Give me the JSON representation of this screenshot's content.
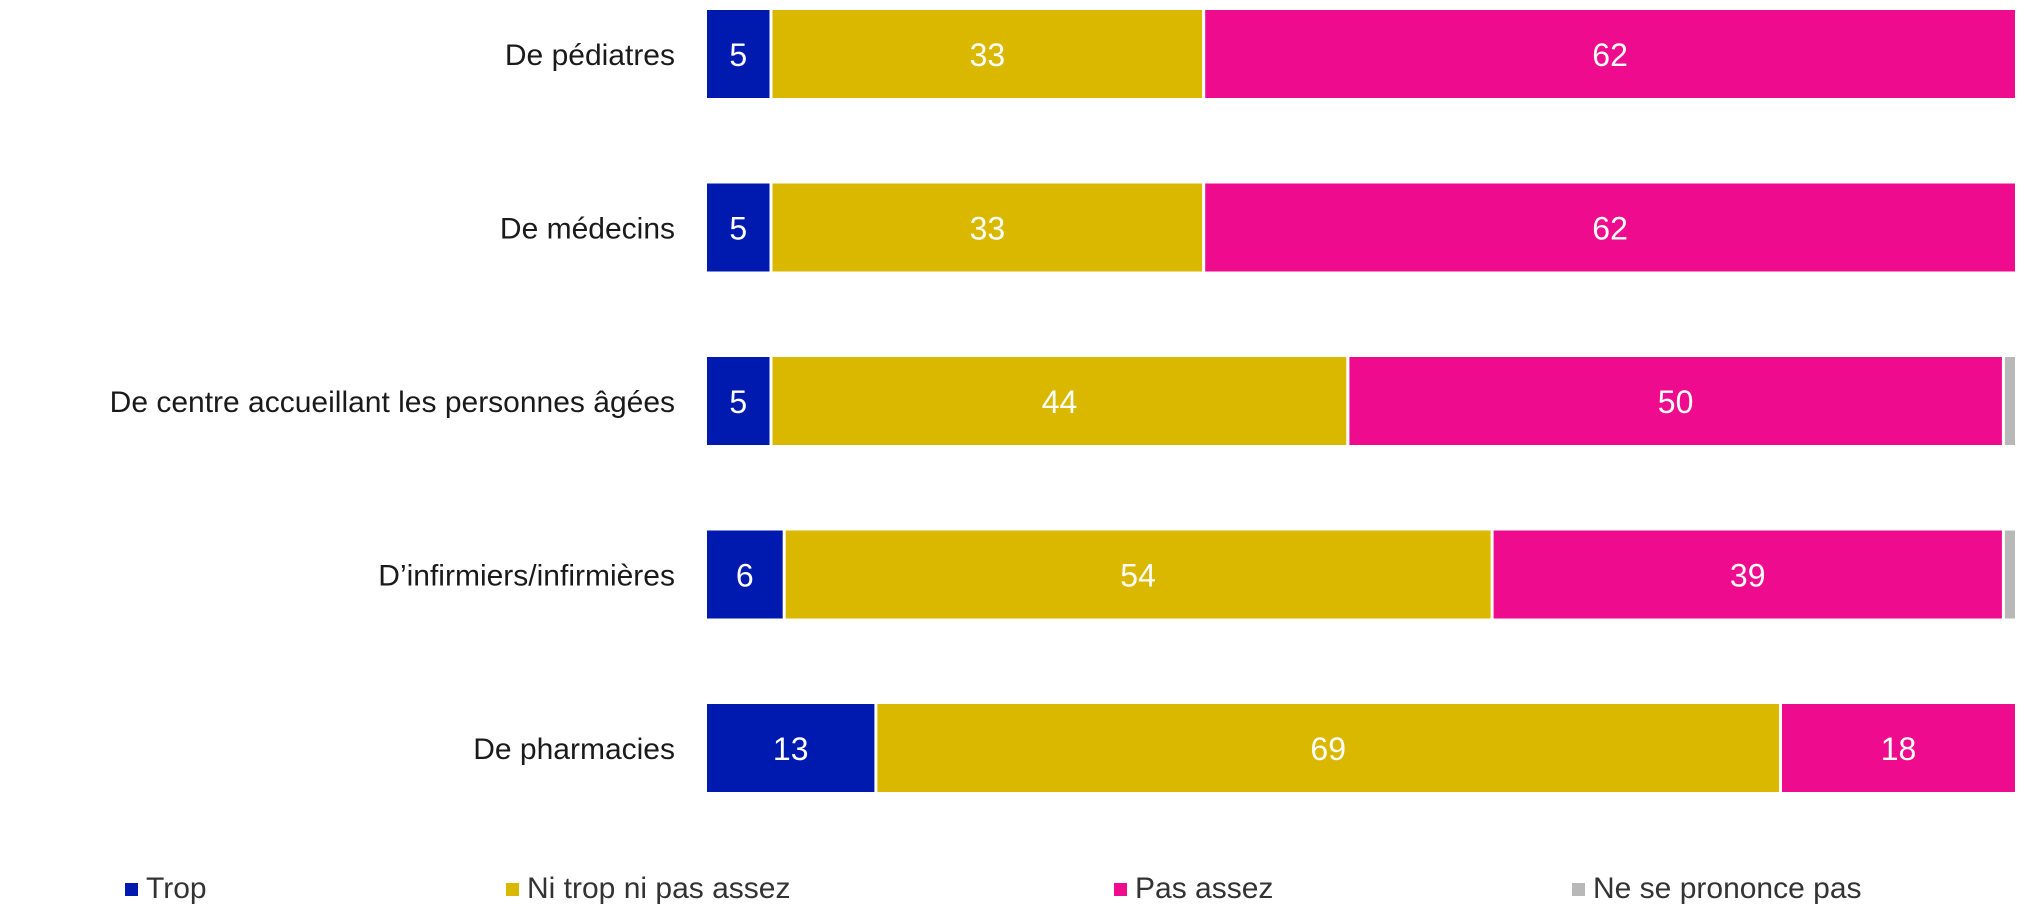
{
  "chart_data": {
    "type": "bar",
    "orientation": "horizontal",
    "stacked": true,
    "categories": [
      "De pédiatres",
      "De médecins",
      "De centre accueillant les personnes âgées",
      "D’infirmiers/infirmières",
      "De pharmacies"
    ],
    "series": [
      {
        "name": "Trop",
        "color": "#001aaf",
        "values": [
          5,
          5,
          5,
          6,
          13
        ]
      },
      {
        "name": "Ni trop ni pas assez",
        "color": "#dab800",
        "values": [
          33,
          33,
          44,
          54,
          69
        ]
      },
      {
        "name": "Pas assez",
        "color": "#ef0b8e",
        "values": [
          62,
          62,
          50,
          39,
          18
        ]
      },
      {
        "name": "Ne se prononce pas",
        "color": "#b8b8b8",
        "values": [
          0,
          0,
          1,
          1,
          0
        ]
      }
    ],
    "xlim": [
      0,
      100
    ],
    "grid": false,
    "legend_position": "bottom"
  }
}
